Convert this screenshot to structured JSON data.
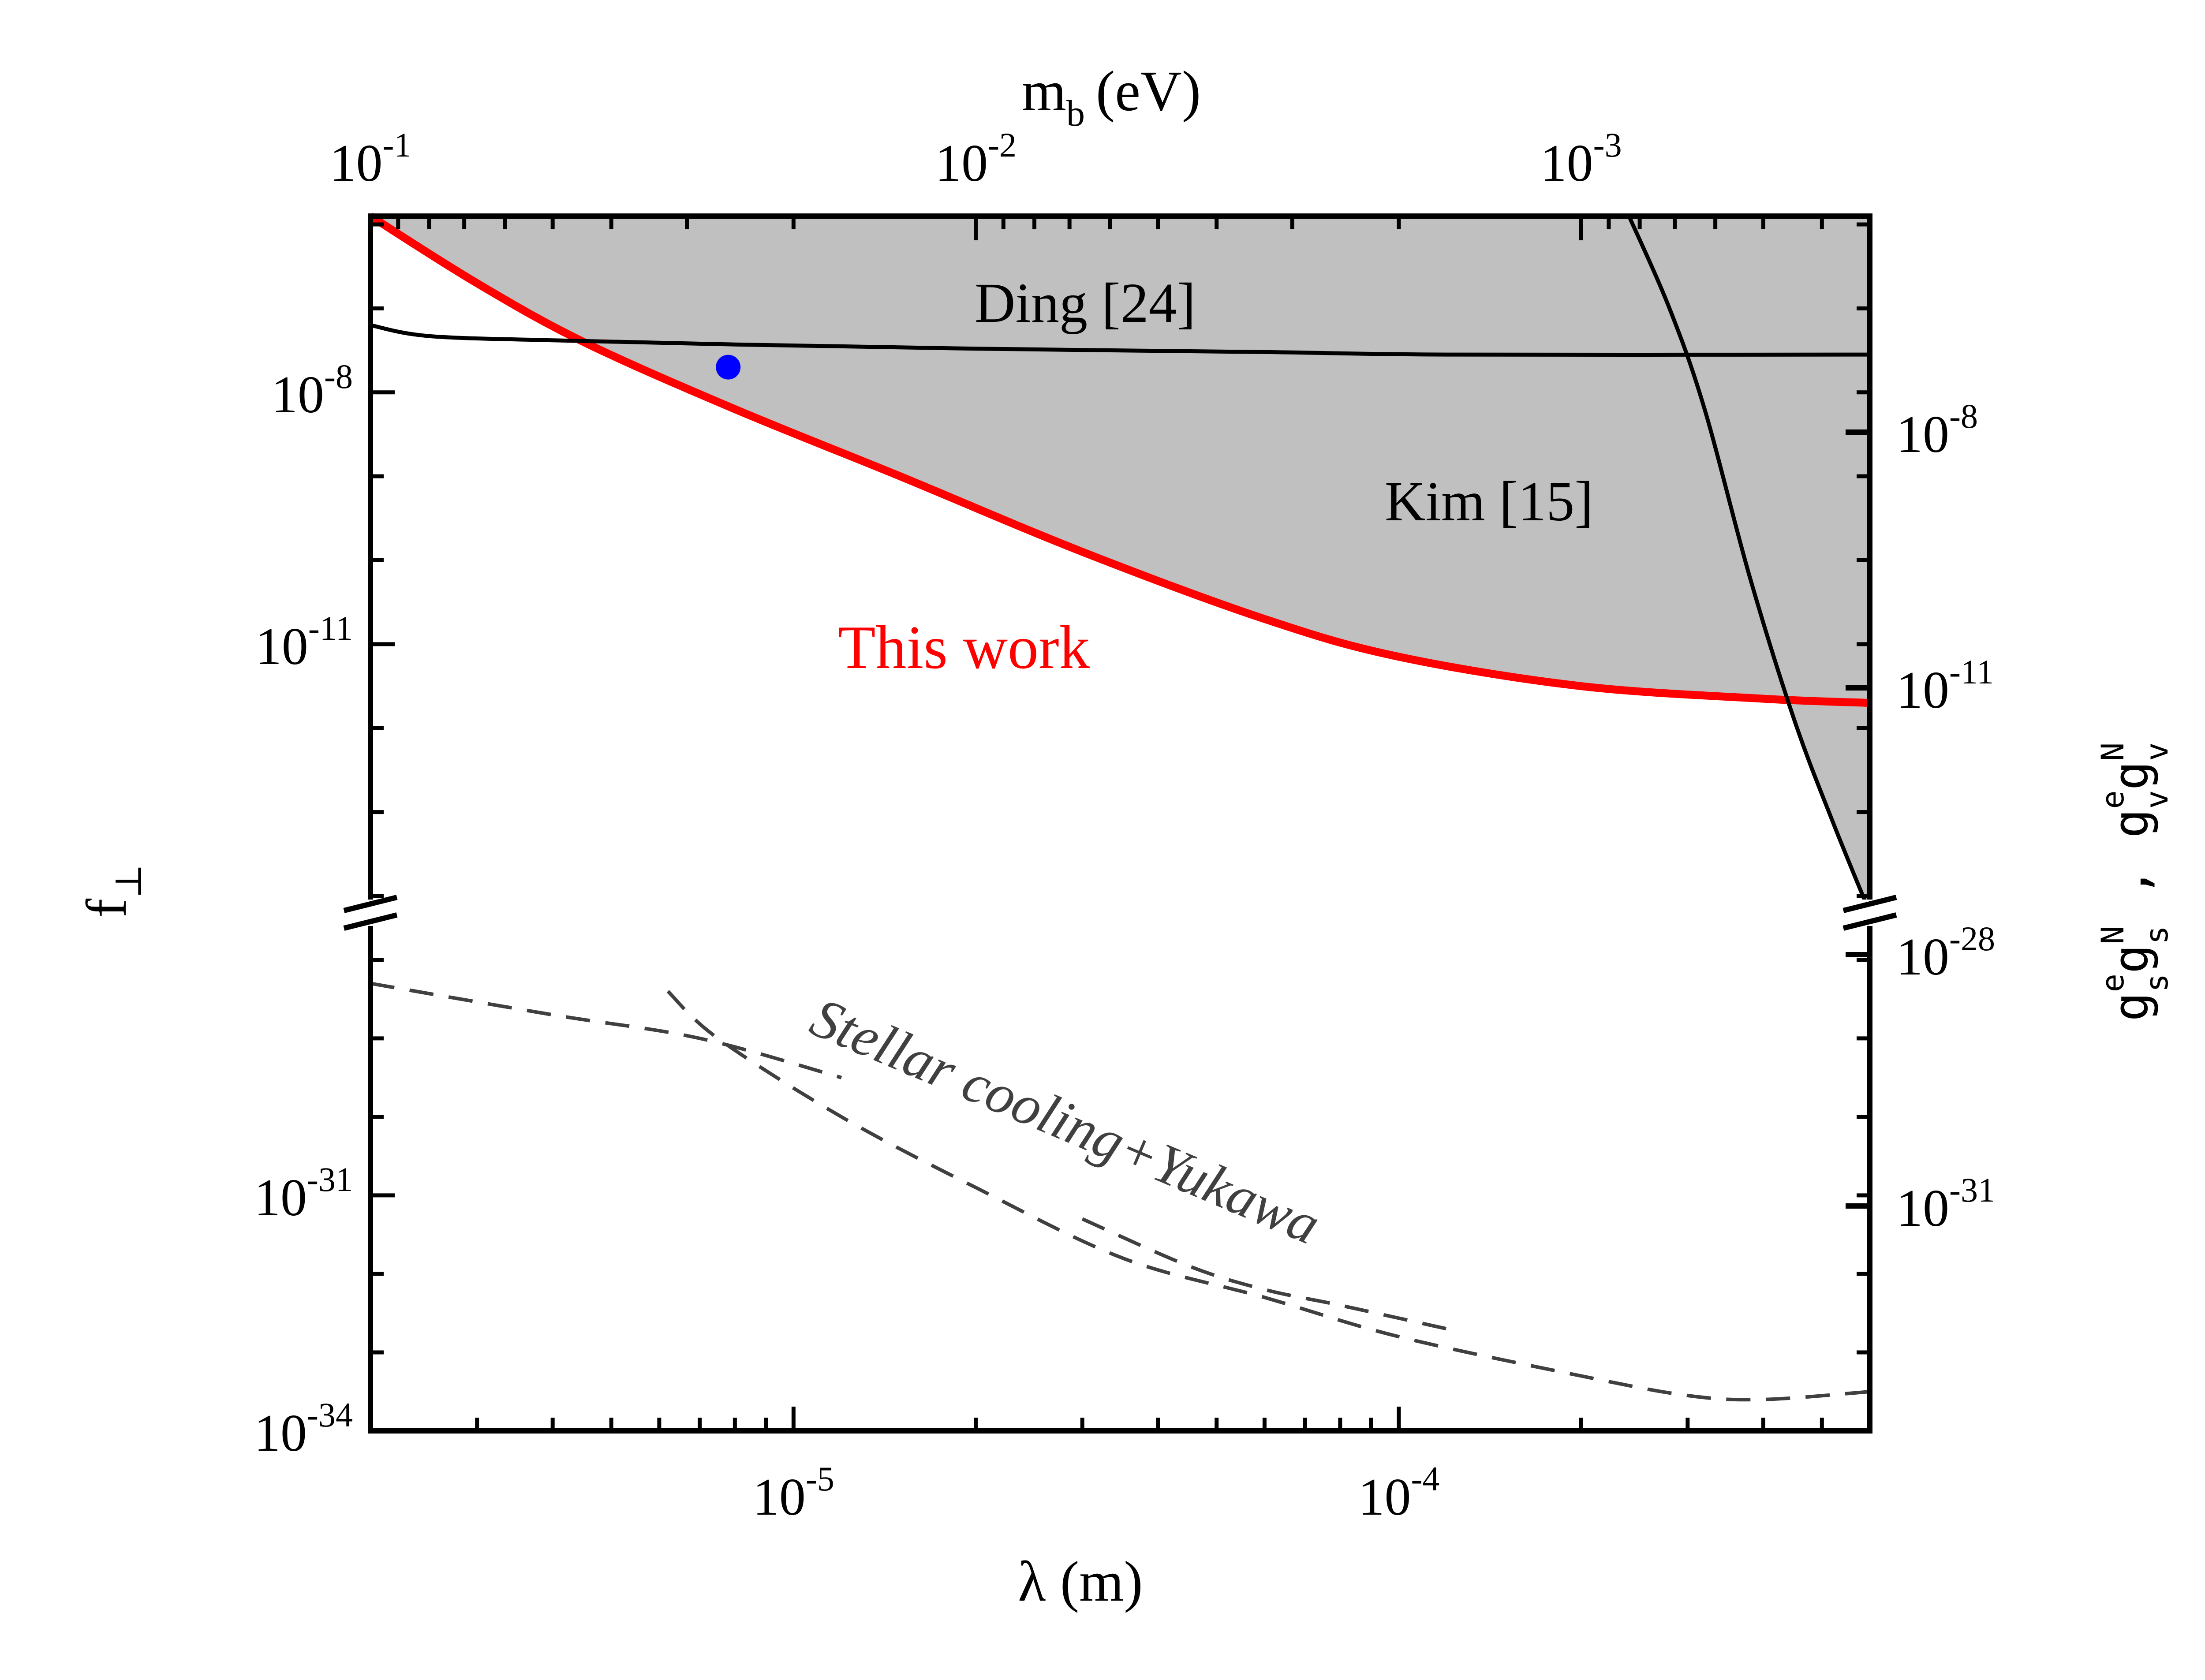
{
  "chart_data": {
    "type": "line",
    "xlabel": "λ (m)",
    "xscale": "log",
    "xlim": [
      2e-06,
      0.0006
    ],
    "x_ticks": [
      {
        "value": 1e-05,
        "base": "10",
        "exp": "-5"
      },
      {
        "value": 0.0001,
        "base": "10",
        "exp": "-4"
      }
    ],
    "top_axis": {
      "label_main": "m",
      "label_sub": "b",
      "label_unit": "(eV)",
      "ticks": [
        {
          "lambda": 2e-06,
          "base": "10",
          "exp": "-1"
        },
        {
          "lambda": 2e-05,
          "base": "10",
          "exp": "-2"
        },
        {
          "lambda": 0.0002,
          "base": "10",
          "exp": "-3"
        }
      ]
    },
    "left_axis": {
      "label_main": "f",
      "label_sub": "⊥",
      "broken": true,
      "upper_segment": {
        "ylim_exp": [
          -14.2,
          -5.9
        ],
        "ticks": [
          {
            "base": "10",
            "exp": "-8",
            "value_exp": -8
          },
          {
            "base": "10",
            "exp": "-11",
            "value_exp": -11
          }
        ]
      },
      "lower_segment": {
        "ylim_exp": [
          -34,
          -27.4
        ],
        "ticks": [
          {
            "base": "10",
            "exp": "-31",
            "value_exp": -31
          },
          {
            "base": "10",
            "exp": "-34",
            "value_exp": -34
          }
        ]
      }
    },
    "right_axis": {
      "label": "g_s^e g_s^N , g_v^e g_v^N",
      "upper_ticks": [
        {
          "base": "10",
          "exp": "-8",
          "value_exp": -8
        },
        {
          "base": "10",
          "exp": "-11",
          "value_exp": -11
        }
      ],
      "lower_ticks": [
        {
          "base": "10",
          "exp": "-28",
          "value_exp": -28
        },
        {
          "base": "10",
          "exp": "-31",
          "value_exp": -31
        }
      ]
    },
    "series": [
      {
        "name": "This work",
        "color": "#ff0000",
        "style": "solid-thick",
        "segment": "upper",
        "points": [
          [
            2e-06,
            -5.9
          ],
          [
            3e-06,
            -6.7
          ],
          [
            4.5e-06,
            -7.4
          ],
          [
            8e-06,
            -8.2
          ],
          [
            1.5e-05,
            -9.0
          ],
          [
            3e-05,
            -9.9
          ],
          [
            6e-05,
            -10.7
          ],
          [
            0.0001,
            -11.15
          ],
          [
            0.0002,
            -11.5
          ],
          [
            0.0004,
            -11.65
          ],
          [
            0.0006,
            -11.7
          ]
        ]
      },
      {
        "name": "Ding [24]",
        "color": "#000000",
        "style": "solid",
        "segment": "upper",
        "points": [
          [
            2e-06,
            -7.2
          ],
          [
            2.5e-06,
            -7.33
          ],
          [
            4e-06,
            -7.38
          ],
          [
            8e-06,
            -7.43
          ],
          [
            2e-05,
            -7.48
          ],
          [
            6e-05,
            -7.52
          ],
          [
            0.00012,
            -7.55
          ],
          [
            0.0006,
            -7.55
          ]
        ]
      },
      {
        "name": "Kim [15]",
        "color": "#000000",
        "style": "solid",
        "segment": "upper",
        "points": [
          [
            0.00024,
            -5.9
          ],
          [
            0.00028,
            -7.0
          ],
          [
            0.00032,
            -8.2
          ],
          [
            0.00038,
            -10.2
          ],
          [
            0.00045,
            -11.9
          ],
          [
            0.00052,
            -13.1
          ],
          [
            0.0006,
            -14.2
          ]
        ]
      },
      {
        "name": "Stellar cooling+Yukawa (a)",
        "color": "#404040",
        "style": "dashed",
        "segment": "lower",
        "points": [
          [
            2e-06,
            -28.3
          ],
          [
            4e-06,
            -28.7
          ],
          [
            7e-06,
            -29.0
          ],
          [
            1.2e-05,
            -29.5
          ]
        ]
      },
      {
        "name": "Stellar cooling+Yukawa (b)",
        "color": "#404040",
        "style": "dashed",
        "segment": "lower",
        "points": [
          [
            6.2e-06,
            -28.4
          ],
          [
            7.5e-06,
            -29.0
          ],
          [
            1.2e-05,
            -30.0
          ],
          [
            2e-05,
            -30.9
          ],
          [
            3.5e-05,
            -31.8
          ],
          [
            6e-05,
            -32.3
          ],
          [
            0.0001,
            -32.8
          ],
          [
            0.0002,
            -33.3
          ],
          [
            0.0003,
            -33.55
          ],
          [
            0.0004,
            -33.6
          ],
          [
            0.0006,
            -33.5
          ]
        ]
      },
      {
        "name": "Stellar cooling+Yukawa (c)",
        "color": "#404040",
        "style": "dashed",
        "segment": "lower",
        "points": [
          [
            3e-05,
            -31.3
          ],
          [
            4.5e-05,
            -31.9
          ],
          [
            6e-05,
            -32.2
          ],
          [
            8e-05,
            -32.4
          ],
          [
            0.00012,
            -32.7
          ]
        ]
      }
    ],
    "excluded_region": {
      "color": "#c0c0c0",
      "description": "above This work and Kim [15] curves"
    },
    "marker": {
      "x": 7.8e-06,
      "y_exp": -7.7,
      "color": "#0000ff"
    },
    "annotations": [
      {
        "text": "Ding [24]",
        "color": "#000000"
      },
      {
        "text": "Kim [15]",
        "color": "#000000"
      },
      {
        "text": "This work",
        "color": "#ff0000"
      },
      {
        "text": "Stellar cooling+Yukawa",
        "color": "#404040"
      }
    ]
  }
}
